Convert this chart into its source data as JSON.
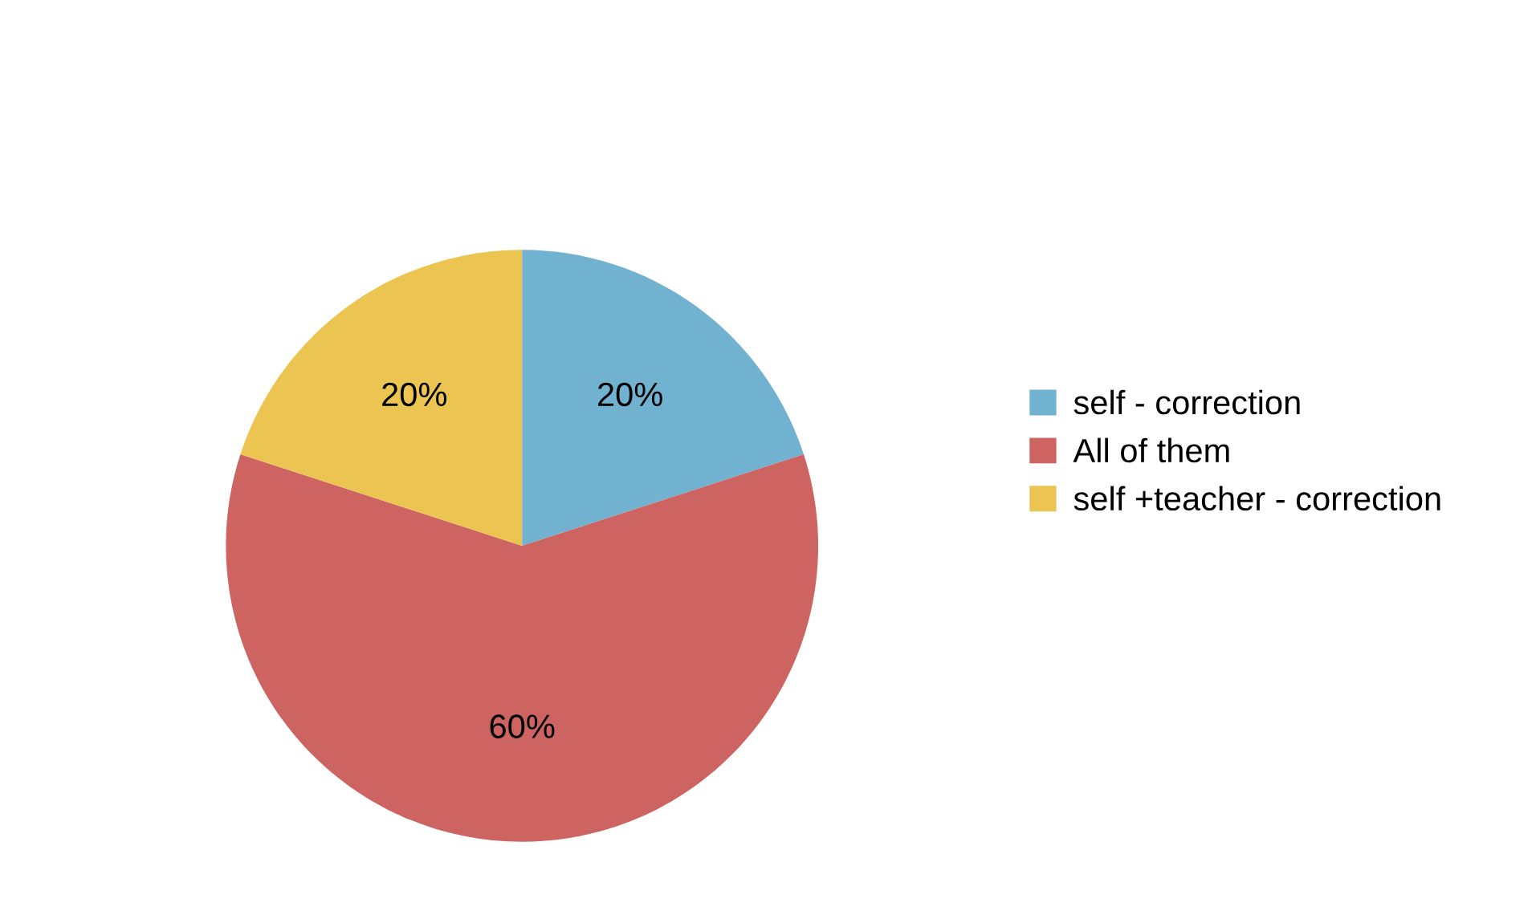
{
  "chart_data": {
    "type": "pie",
    "categories": [
      "self - correction",
      "All of them",
      "self +teacher - correction"
    ],
    "values": [
      20,
      60,
      20
    ],
    "value_labels": [
      "20%",
      "60%",
      "20%"
    ],
    "colors": [
      "#72b2d1",
      "#cd6462",
      "#ebc452"
    ],
    "legend": "right"
  }
}
